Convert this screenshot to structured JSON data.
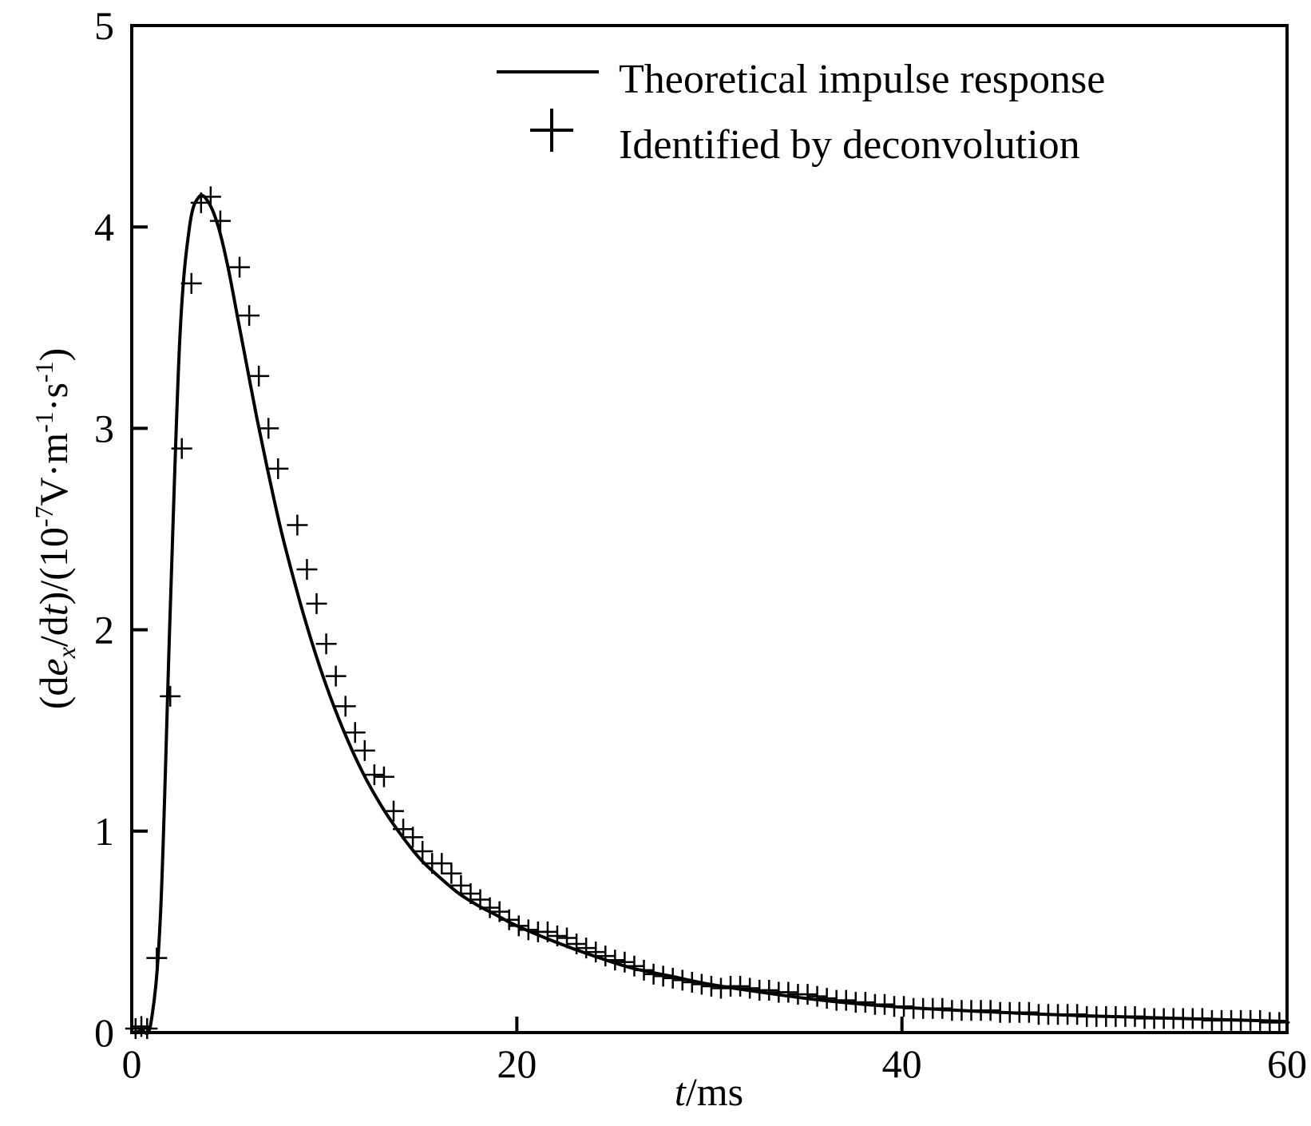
{
  "chart_data": {
    "type": "line",
    "title": "",
    "xlabel": {
      "var": "t",
      "unit": "/ms"
    },
    "ylabel": {
      "p1": "(d",
      "p2": "e",
      "p3": "x",
      "p4": "/d",
      "p5": "t",
      "p6": ")/(10",
      "p7": "-7",
      "p8": "V·m",
      "p9": "-1",
      "p10": "·s",
      "p11": "-1",
      "p12": ")"
    },
    "xlim": [
      0,
      60
    ],
    "ylim": [
      0,
      5
    ],
    "xticks": [
      {
        "value": 0,
        "label": "0"
      },
      {
        "value": 20,
        "label": "20"
      },
      {
        "value": 40,
        "label": "40"
      },
      {
        "value": 60,
        "label": "60"
      }
    ],
    "yticks": [
      {
        "value": 0,
        "label": "0"
      },
      {
        "value": 1,
        "label": "1"
      },
      {
        "value": 2,
        "label": "2"
      },
      {
        "value": 3,
        "label": "3"
      },
      {
        "value": 4,
        "label": "4"
      },
      {
        "value": 5,
        "label": "5"
      }
    ],
    "grid": false,
    "legend_position": "top-right",
    "series": [
      {
        "name": "Theoretical impulse response",
        "style": "line",
        "color": "#000000",
        "x": [
          0,
          0.5,
          1.0,
          1.5,
          2.0,
          2.5,
          3.0,
          3.5,
          4.0,
          4.5,
          5.0,
          5.5,
          6.0,
          6.5,
          7.0,
          7.5,
          8.0,
          9.0,
          10.0,
          11.0,
          12.0,
          13.0,
          14.0,
          15.0,
          16.0,
          17.0,
          18.0,
          19.0,
          20.0,
          22.0,
          24.0,
          26.0,
          28.0,
          30.0,
          32.0,
          35.0,
          38.0,
          41.0,
          44.0,
          47.0,
          50.0,
          53.0,
          56.0,
          60.0
        ],
        "y": [
          0.0,
          0.01,
          0.05,
          0.6,
          2.1,
          3.45,
          4.0,
          4.15,
          4.12,
          4.0,
          3.8,
          3.55,
          3.3,
          3.05,
          2.82,
          2.6,
          2.4,
          2.05,
          1.75,
          1.5,
          1.29,
          1.12,
          0.98,
          0.86,
          0.77,
          0.69,
          0.63,
          0.58,
          0.53,
          0.45,
          0.38,
          0.32,
          0.28,
          0.24,
          0.21,
          0.17,
          0.14,
          0.12,
          0.105,
          0.092,
          0.082,
          0.074,
          0.066,
          0.055
        ]
      },
      {
        "name": "Identified by deconvolution",
        "style": "plus",
        "color": "#000000",
        "x": [
          0.2,
          0.5,
          0.8,
          1.3,
          2.0,
          2.6,
          3.1,
          3.6,
          4.1,
          4.6,
          5.6,
          6.1,
          6.6,
          7.1,
          7.6,
          8.6,
          9.1,
          9.6,
          10.1,
          10.6,
          11.1,
          11.6,
          12.1,
          12.6,
          13.1,
          13.6,
          14.1,
          14.6,
          15.1,
          15.6,
          16.1,
          16.6,
          17.1,
          17.6,
          18.1,
          18.6,
          19.1,
          19.6,
          20.1,
          20.6,
          21.1,
          21.6,
          22.1,
          22.6,
          23.1,
          23.6,
          24.1,
          24.6,
          25.1,
          25.6,
          26.1,
          26.6,
          27.1,
          27.6,
          28.1,
          28.6,
          29.1,
          29.6,
          30.1,
          30.6,
          31.1,
          31.6,
          32.1,
          32.6,
          33.1,
          33.6,
          34.1,
          34.6,
          35.1,
          35.6,
          36.1,
          36.6,
          37.1,
          37.6,
          38.1,
          38.6,
          39.1,
          39.6,
          40.1,
          40.6,
          41.1,
          41.6,
          42.1,
          42.6,
          43.1,
          43.6,
          44.1,
          44.6,
          45.1,
          45.6,
          46.1,
          46.6,
          47.1,
          47.6,
          48.1,
          48.6,
          49.1,
          49.6,
          50.1,
          50.6,
          51.1,
          51.6,
          52.1,
          52.6,
          53.1,
          53.6,
          54.1,
          54.6,
          55.1,
          55.6,
          56.1,
          56.6,
          57.1,
          57.6,
          58.1,
          58.6,
          59.1,
          59.6
        ],
        "y": [
          0.02,
          0.03,
          0.02,
          0.37,
          1.67,
          2.9,
          3.72,
          4.12,
          4.15,
          4.03,
          3.8,
          3.56,
          3.26,
          3.0,
          2.8,
          2.52,
          2.3,
          2.13,
          1.93,
          1.77,
          1.62,
          1.49,
          1.4,
          1.28,
          1.27,
          1.1,
          1.01,
          0.97,
          0.9,
          0.84,
          0.84,
          0.79,
          0.73,
          0.69,
          0.66,
          0.62,
          0.6,
          0.56,
          0.53,
          0.51,
          0.5,
          0.5,
          0.48,
          0.47,
          0.44,
          0.42,
          0.4,
          0.38,
          0.36,
          0.35,
          0.33,
          0.31,
          0.29,
          0.28,
          0.27,
          0.26,
          0.25,
          0.24,
          0.23,
          0.22,
          0.23,
          0.23,
          0.22,
          0.21,
          0.21,
          0.2,
          0.2,
          0.19,
          0.19,
          0.18,
          0.17,
          0.16,
          0.16,
          0.15,
          0.15,
          0.14,
          0.14,
          0.13,
          0.13,
          0.12,
          0.12,
          0.12,
          0.12,
          0.11,
          0.11,
          0.11,
          0.11,
          0.11,
          0.1,
          0.1,
          0.1,
          0.1,
          0.09,
          0.09,
          0.09,
          0.09,
          0.09,
          0.08,
          0.08,
          0.08,
          0.08,
          0.08,
          0.08,
          0.07,
          0.07,
          0.07,
          0.07,
          0.07,
          0.07,
          0.07,
          0.06,
          0.06,
          0.06,
          0.06,
          0.06,
          0.06,
          0.05,
          0.05
        ]
      }
    ]
  }
}
